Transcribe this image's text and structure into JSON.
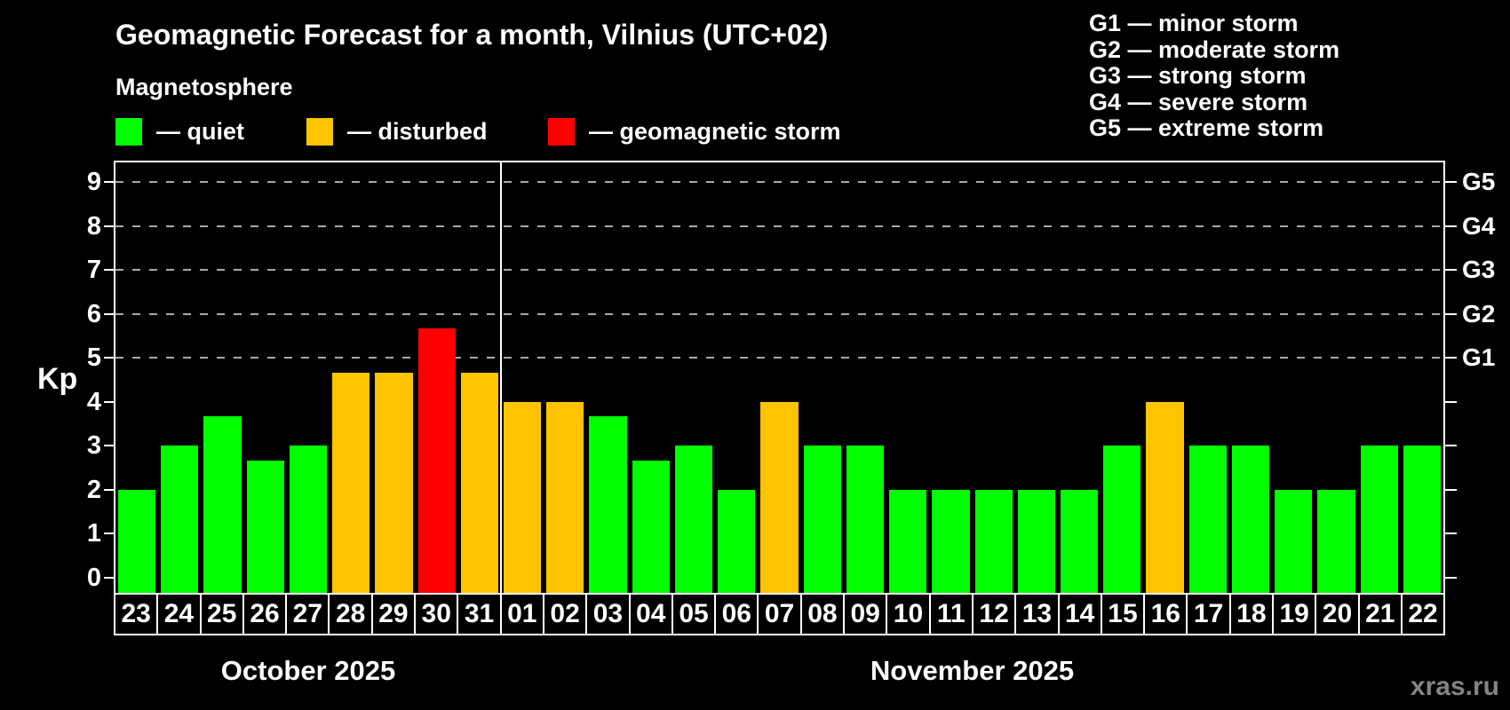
{
  "title": "Geomagnetic Forecast for a month, Vilnius (UTC+02)",
  "subtitle": "Magnetosphere",
  "watermark": "xras.ru",
  "legend": {
    "items": [
      {
        "name": "quiet",
        "label": "— quiet",
        "color": "#00ff00"
      },
      {
        "name": "disturbed",
        "label": "— disturbed",
        "color": "#ffc400"
      },
      {
        "name": "storm",
        "label": "— geomagnetic storm",
        "color": "#ff0000"
      }
    ]
  },
  "storm_scale": {
    "separator": "—",
    "items": [
      {
        "code": "G1",
        "label": "minor storm",
        "kp": 5
      },
      {
        "code": "G2",
        "label": "moderate storm",
        "kp": 6
      },
      {
        "code": "G3",
        "label": "strong storm",
        "kp": 7
      },
      {
        "code": "G4",
        "label": "severe storm",
        "kp": 8
      },
      {
        "code": "G5",
        "label": "extreme storm",
        "kp": 9
      }
    ]
  },
  "chart_data": {
    "type": "bar",
    "ylabel": "Kp",
    "ylim": [
      -0.35,
      9.45
    ],
    "y_ticks": [
      0,
      1,
      2,
      3,
      4,
      5,
      6,
      7,
      8,
      9
    ],
    "gridlines_at": [
      5,
      6,
      7,
      8,
      9
    ],
    "grid_style": "dashed horizontal, gray, at Kp 5-9 only",
    "legend_position": "top-left",
    "right_axis": [
      {
        "kp": 5,
        "label": "G1"
      },
      {
        "kp": 6,
        "label": "G2"
      },
      {
        "kp": 7,
        "label": "G3"
      },
      {
        "kp": 8,
        "label": "G4"
      },
      {
        "kp": 9,
        "label": "G5"
      }
    ],
    "status_colors": {
      "quiet": "#00ff00",
      "disturbed": "#ffc400",
      "storm": "#ff0000"
    },
    "months": [
      {
        "label": "October 2025",
        "start_index": 0,
        "count": 9
      },
      {
        "label": "November 2025",
        "start_index": 9,
        "count": 22
      }
    ],
    "days": [
      {
        "date": "23",
        "kp": 2,
        "status": "quiet"
      },
      {
        "date": "24",
        "kp": 3,
        "status": "quiet"
      },
      {
        "date": "25",
        "kp": 3.67,
        "status": "quiet"
      },
      {
        "date": "26",
        "kp": 2.67,
        "status": "quiet"
      },
      {
        "date": "27",
        "kp": 3,
        "status": "quiet"
      },
      {
        "date": "28",
        "kp": 4.67,
        "status": "disturbed"
      },
      {
        "date": "29",
        "kp": 4.67,
        "status": "disturbed"
      },
      {
        "date": "30",
        "kp": 5.67,
        "status": "storm"
      },
      {
        "date": "31",
        "kp": 4.67,
        "status": "disturbed"
      },
      {
        "date": "01",
        "kp": 4,
        "status": "disturbed"
      },
      {
        "date": "02",
        "kp": 4,
        "status": "disturbed"
      },
      {
        "date": "03",
        "kp": 3.67,
        "status": "quiet"
      },
      {
        "date": "04",
        "kp": 2.67,
        "status": "quiet"
      },
      {
        "date": "05",
        "kp": 3,
        "status": "quiet"
      },
      {
        "date": "06",
        "kp": 2,
        "status": "quiet"
      },
      {
        "date": "07",
        "kp": 4,
        "status": "disturbed"
      },
      {
        "date": "08",
        "kp": 3,
        "status": "quiet"
      },
      {
        "date": "09",
        "kp": 3,
        "status": "quiet"
      },
      {
        "date": "10",
        "kp": 2,
        "status": "quiet"
      },
      {
        "date": "11",
        "kp": 2,
        "status": "quiet"
      },
      {
        "date": "12",
        "kp": 2,
        "status": "quiet"
      },
      {
        "date": "13",
        "kp": 2,
        "status": "quiet"
      },
      {
        "date": "14",
        "kp": 2,
        "status": "quiet"
      },
      {
        "date": "15",
        "kp": 3,
        "status": "quiet"
      },
      {
        "date": "16",
        "kp": 4,
        "status": "disturbed"
      },
      {
        "date": "17",
        "kp": 3,
        "status": "quiet"
      },
      {
        "date": "18",
        "kp": 3,
        "status": "quiet"
      },
      {
        "date": "19",
        "kp": 2,
        "status": "quiet"
      },
      {
        "date": "20",
        "kp": 2,
        "status": "quiet"
      },
      {
        "date": "21",
        "kp": 3,
        "status": "quiet"
      },
      {
        "date": "22",
        "kp": 3,
        "status": "quiet"
      }
    ]
  }
}
